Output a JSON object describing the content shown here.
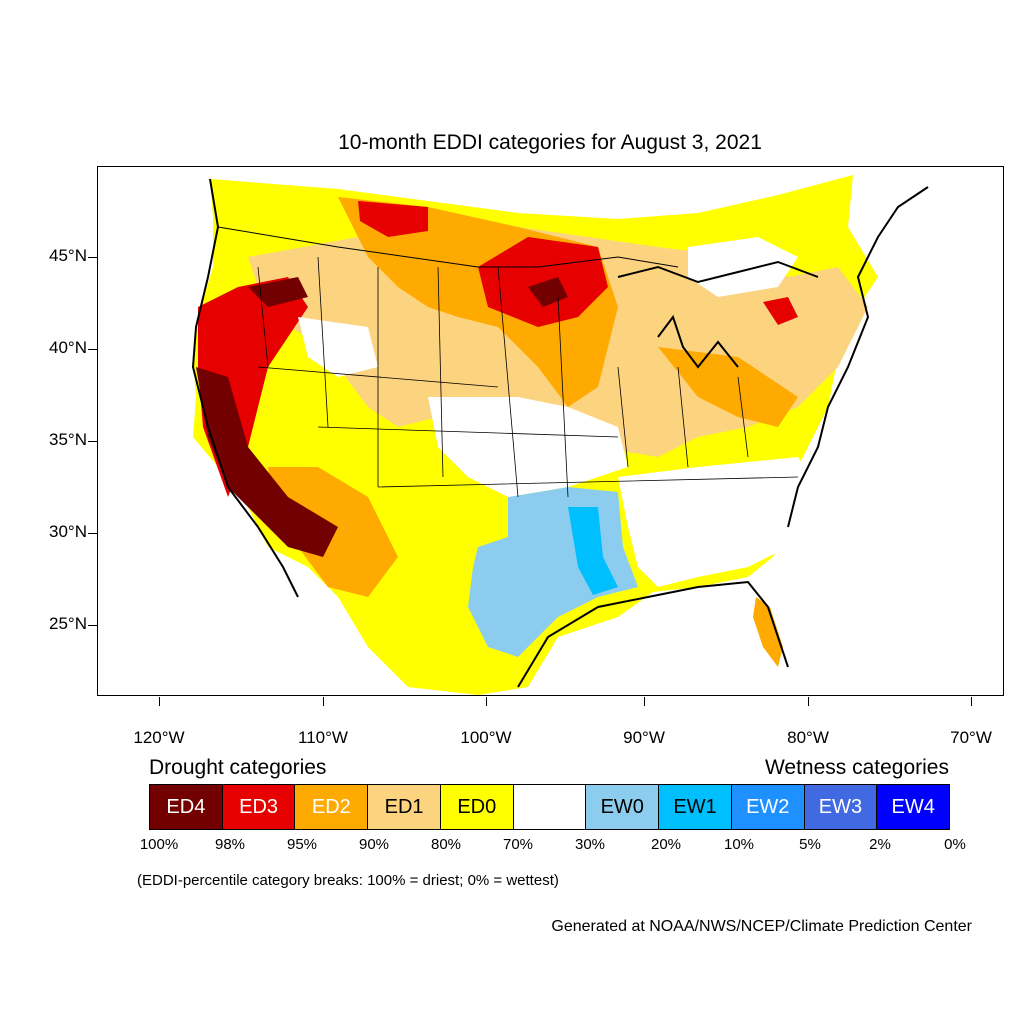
{
  "title": "10-month EDDI categories for August 3, 2021",
  "lat_labels": [
    "45°N",
    "40°N",
    "35°N",
    "30°N",
    "25°N"
  ],
  "lon_labels": [
    "120°W",
    "110°W",
    "100°W",
    "90°W",
    "80°W",
    "70°W"
  ],
  "legend": {
    "drought_heading": "Drought categories",
    "wetness_heading": "Wetness categories",
    "categories": [
      {
        "label": "ED4",
        "color": "#730000",
        "text_color": "#ffffff"
      },
      {
        "label": "ED3",
        "color": "#e60000",
        "text_color": "#ffffff"
      },
      {
        "label": "ED2",
        "color": "#ffaa00",
        "text_color": "#ffffff"
      },
      {
        "label": "ED1",
        "color": "#fcd37f",
        "text_color": "#000000"
      },
      {
        "label": "ED0",
        "color": "#ffff00",
        "text_color": "#000000"
      },
      {
        "label": "",
        "color": "#ffffff",
        "text_color": "#000000"
      },
      {
        "label": "EW0",
        "color": "#8ccdef",
        "text_color": "#000000"
      },
      {
        "label": "EW1",
        "color": "#00bfff",
        "text_color": "#000000"
      },
      {
        "label": "EW2",
        "color": "#1e90ff",
        "text_color": "#ffffff"
      },
      {
        "label": "EW3",
        "color": "#4169e1",
        "text_color": "#ffffff"
      },
      {
        "label": "EW4",
        "color": "#0000ff",
        "text_color": "#ffffff"
      }
    ],
    "breaks": [
      "100%",
      "98%",
      "95%",
      "90%",
      "80%",
      "70%",
      "30%",
      "20%",
      "10%",
      "5%",
      "2%",
      "0%"
    ]
  },
  "note": "(EDDI-percentile category breaks: 100% = driest; 0% = wettest)",
  "credit": "Generated at NOAA/NWS/NCEP/Climate Prediction Center"
}
